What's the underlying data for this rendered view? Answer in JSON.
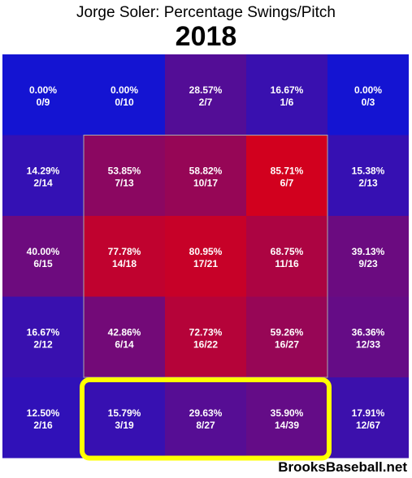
{
  "title": "Jorge Soler: Percentage Swings/Pitch",
  "year": "2018",
  "watermark": "BrooksBaseball.net",
  "colors": {
    "low": "#1414d2",
    "high": "#d2001e",
    "strike_zone": "#aaaaaa",
    "highlight": "#ffff00"
  },
  "chart_data": {
    "type": "heatmap",
    "title": "Jorge Soler: Percentage Swings/Pitch",
    "subtitle": "2018",
    "rows": 5,
    "cols": 5,
    "cells": [
      [
        {
          "pct": "0.00%",
          "frac": "0/9",
          "value": 0.0
        },
        {
          "pct": "0.00%",
          "frac": "0/10",
          "value": 0.0
        },
        {
          "pct": "28.57%",
          "frac": "2/7",
          "value": 28.57
        },
        {
          "pct": "16.67%",
          "frac": "1/6",
          "value": 16.67
        },
        {
          "pct": "0.00%",
          "frac": "0/3",
          "value": 0.0
        }
      ],
      [
        {
          "pct": "14.29%",
          "frac": "2/14",
          "value": 14.29
        },
        {
          "pct": "53.85%",
          "frac": "7/13",
          "value": 53.85
        },
        {
          "pct": "58.82%",
          "frac": "10/17",
          "value": 58.82
        },
        {
          "pct": "85.71%",
          "frac": "6/7",
          "value": 85.71
        },
        {
          "pct": "15.38%",
          "frac": "2/13",
          "value": 15.38
        }
      ],
      [
        {
          "pct": "40.00%",
          "frac": "6/15",
          "value": 40.0
        },
        {
          "pct": "77.78%",
          "frac": "14/18",
          "value": 77.78
        },
        {
          "pct": "80.95%",
          "frac": "17/21",
          "value": 80.95
        },
        {
          "pct": "68.75%",
          "frac": "11/16",
          "value": 68.75
        },
        {
          "pct": "39.13%",
          "frac": "9/23",
          "value": 39.13
        }
      ],
      [
        {
          "pct": "16.67%",
          "frac": "2/12",
          "value": 16.67
        },
        {
          "pct": "42.86%",
          "frac": "6/14",
          "value": 42.86
        },
        {
          "pct": "72.73%",
          "frac": "16/22",
          "value": 72.73
        },
        {
          "pct": "59.26%",
          "frac": "16/27",
          "value": 59.26
        },
        {
          "pct": "36.36%",
          "frac": "12/33",
          "value": 36.36
        }
      ],
      [
        {
          "pct": "12.50%",
          "frac": "2/16",
          "value": 12.5
        },
        {
          "pct": "15.79%",
          "frac": "3/19",
          "value": 15.79
        },
        {
          "pct": "29.63%",
          "frac": "8/27",
          "value": 29.63
        },
        {
          "pct": "35.90%",
          "frac": "14/39",
          "value": 35.9
        },
        {
          "pct": "17.91%",
          "frac": "12/67",
          "value": 17.91
        }
      ]
    ],
    "strike_zone": {
      "row_start": 1,
      "row_end": 3,
      "col_start": 1,
      "col_end": 3
    },
    "highlight": {
      "row": 4,
      "col_start": 1,
      "col_end": 3
    }
  }
}
